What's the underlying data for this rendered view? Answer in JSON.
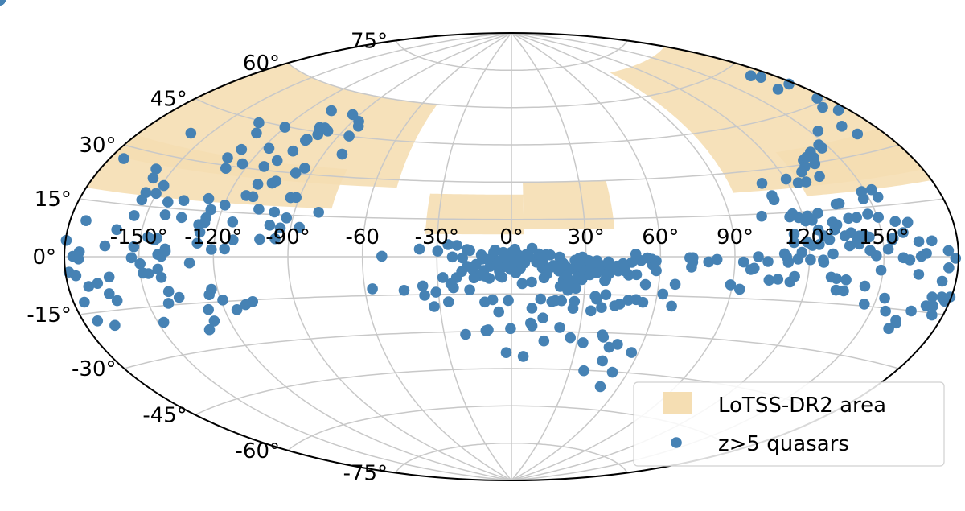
{
  "chart_data": {
    "type": "scatter",
    "projection": "aitoff",
    "xlabel": "",
    "ylabel": "",
    "xlim": [
      -180,
      180
    ],
    "ylim": [
      -90,
      90
    ],
    "grid": true,
    "legend_position": "bottom-right",
    "x_tick_labels": [
      "-150°",
      "-120°",
      "-90°",
      "-60",
      "-30°",
      "0°",
      "30°",
      "60°",
      "90°",
      "120°",
      "150°"
    ],
    "x_tick_values": [
      -150,
      -120,
      -90,
      -60,
      -30,
      0,
      30,
      60,
      90,
      120,
      150
    ],
    "y_tick_labels": [
      "-75°",
      "-60°",
      "-45°",
      "-30°",
      "-15°",
      "0°",
      "15°",
      "30°",
      "45°",
      "60°",
      "75°"
    ],
    "y_tick_values": [
      -75,
      -60,
      -45,
      -30,
      -15,
      0,
      15,
      30,
      45,
      60,
      75
    ],
    "colors": {
      "area": "#f5deb3",
      "quasars": "#4682b4"
    },
    "series": [
      {
        "name": "LoTSS-DR2 area",
        "kind": "area",
        "regions": [
          {
            "lon": [
              -180,
              -50
            ],
            "lat": [
              27,
              60
            ]
          },
          {
            "lon": [
              -180,
              -75
            ],
            "lat": [
              18,
              33
            ]
          },
          {
            "lon": [
              -35,
              5
            ],
            "lat": [
              9,
              25
            ]
          },
          {
            "lon": [
              5,
              42
            ],
            "lat": [
              11,
              30
            ]
          },
          {
            "lon": [
              95,
              180
            ],
            "lat": [
              23,
              70
            ]
          },
          {
            "lon": [
              125,
              180
            ],
            "lat": [
              20,
              35
            ]
          }
        ]
      },
      {
        "name": "z>5 quasars",
        "kind": "points",
        "lon": [
          -120.1,
          -107.7,
          -134.9,
          -103.6,
          -103.3,
          -101.8,
          -103.8,
          -100.5,
          -100.6,
          -97.5,
          -130.0,
          -128.7,
          -93.9,
          -86.8,
          -84.5,
          -84.7,
          -128.3,
          -108.7,
          -131.3,
          -112.5,
          -105.1,
          -158.5,
          -81.5,
          -117.0,
          -174.3,
          -157.2,
          -155.5,
          -154.6,
          -143.5,
          -150.2,
          -137.3,
          -127.5,
          -110.2,
          -103.2,
          -109.6,
          -154.9,
          -122.7,
          -96.8,
          -94.2,
          -104.4,
          -112.6,
          -91.4,
          -80.0,
          -86.5,
          -94.2,
          -98.7,
          -101.8,
          -95.6,
          -98.2,
          -105.0,
          -92.6,
          -93.7,
          -119.6,
          -114.1,
          -126.4,
          -127.6,
          -120.9,
          -122.5,
          -147.6,
          -174.2,
          -168.3,
          -175.7,
          -153.0,
          -148.7,
          -152.2,
          -163.9,
          -176.6,
          -179.7,
          -173.6,
          -174.0,
          -174.3,
          -178.6,
          -176.0,
          -171.8,
          -162.7,
          -167.9,
          -164.4,
          -141.0,
          -142.6,
          -139.5,
          -146.6,
          -141.7,
          -129.7,
          -142.4,
          -160.2,
          -135.4,
          -142.4,
          -154.6,
          -149.0,
          -143.3,
          -147.0,
          -125.4,
          -125.4,
          -144.1,
          -124.6,
          -115.6,
          -112.5,
          -126.8,
          -139.4,
          -149.6,
          -140.1,
          -136.6,
          -162.2,
          -141.8,
          -119.2,
          -124.0,
          -126.6,
          -126.5,
          -130.6,
          -110.5,
          -114.9,
          -107.2,
          -56.9,
          -52.2,
          -37.1,
          -29.7,
          -25.6,
          -22.0,
          -17.9,
          -12.1,
          -7.2,
          -6.6,
          -16.8,
          -19.7,
          -14.3,
          -11.7,
          -7.8,
          -15.5,
          -8.3,
          -23.8,
          -22.3,
          -17.1,
          -11.1,
          -3.1,
          -11.1,
          -9.0,
          -4.7,
          -4.9,
          -0.4,
          -4.3,
          -2.0,
          -2.6,
          -5.4,
          -0.7,
          1.2,
          0.2,
          0.7,
          2.6,
          4.7,
          3.6,
          5.3,
          7.1,
          8.3,
          11.0,
          10.3,
          10.1,
          12.5,
          12.8,
          15.6,
          16.9,
          19.4,
          20.8,
          21.6,
          21.8,
          20.8,
          25.6,
          27.0,
          28.0,
          27.9,
          26.8,
          28.5,
          25.3,
          24.1,
          26.9,
          30.9,
          30.8,
          33.4,
          33.4,
          35.9,
          36.5,
          38.3,
          38.6,
          39.5,
          39.1,
          34.5,
          31.0,
          28.6,
          29.8,
          46.1,
          50.6,
          43.1,
          45.1,
          44.3,
          41.5,
          38.9,
          31.8,
          39.5,
          28.6,
          26.0,
          22.7,
          24.2,
          26.4,
          31.8,
          34.5,
          37.9,
          40.7,
          42.4,
          58.3,
          56.6,
          50.1,
          44.5,
          14.4,
          13.2,
          12.4,
          11.9,
          13.9,
          12.5,
          14.8,
          19.2,
          19.9,
          18.0,
          21.1,
          22.4,
          18.9,
          27.0,
          31.3,
          27.3,
          6.0,
          1.4,
          -0.1,
          -3.3,
          -5.9,
          -8.6,
          -8.6,
          -17.8,
          -20.1,
          -27.8,
          -12.9,
          -4.9,
          4.4,
          8.2,
          3.3,
          0.7,
          -5.4,
          -2.8,
          -9.5,
          -5.5,
          -2.0,
          1.8,
          -3.8,
          -10.8,
          -15.2,
          -23.7,
          -24.7,
          -31.0,
          -36.2,
          -44.0,
          -35.8,
          -26.2,
          -32.4,
          -7.8,
          -1.3,
          8.6,
          12.1,
          16.8,
          23.1,
          23.8,
          34.6,
          35.3,
          38.9,
          43.2,
          45.2,
          48.5,
          37.8,
          33.6,
          26.2,
          25.9,
          20.8,
          18.3,
          13.5,
          8.3,
          -10.9,
          -20.5,
          -11.3,
          -2.5,
          5.7,
          -0.4,
          -10.3,
          -5.4,
          9.0,
          14.8,
          21.2,
          26.6,
          32.8,
          40.7,
          45.4,
          37.3,
          44.7,
          56.8,
          48.8,
          41.4,
          50.0,
          52.2,
          52.2,
          48.5,
          73.0,
          93.3,
          96.6,
          82.8,
          89.2,
          93.5,
          71.8,
          73.1,
          79.4,
          72.6,
          56.8,
          58.5,
          62.3,
          67.0,
          54.7,
          51.7,
          66.7,
          54.6,
          47.5,
          45.8,
          45.0,
          54.7,
          115.4,
          114.6,
          118.0,
          120.5,
          124.7,
          126.5,
          128.5,
          131.3,
          135.0,
          136.4,
          137.7,
          139.5,
          140.8,
          144.5,
          144.7,
          146.9,
          149.1,
          151.8,
          153.8,
          154.3,
          157.8,
          160.4,
          164.5,
          164.4,
          165.0,
          167.1,
          169.7,
          176.0,
          178.8,
          176.3,
          174.5,
          174.1,
          178.0,
          179.5,
          176.2,
          172.3,
          175.5,
          171.3,
          166.3,
          162.8,
          162.1,
          161.3,
          155.9,
          153.3,
          146.0,
          143.8,
          135.7,
          135.6,
          131.6,
          132.5,
          129.4,
          125.8,
          125.6,
          120.4,
          111.5,
          103.3,
          99.4,
          97.9,
          104.5,
          108.0,
          113.1,
          114.6,
          110.8,
          110.0,
          114.1,
          117.0,
          119.5,
          121.4,
          124.2,
          129.5,
          140.3,
          143.1,
          158.7,
          161.6,
          156.7,
          150.4,
          146.6,
          141.6,
          138.2,
          131.3,
          132.7,
          121.1,
          114.5,
          116.0,
          121.8,
          126.4,
          123.2,
          135.4,
          148.5,
          153.0,
          153.9,
          147.6,
          136.8,
          110.7,
          103.1,
          110.6,
          109.1,
          120.4,
          124.5,
          128.0,
          129.1,
          135.2,
          137.4,
          133.8,
          139.3,
          132.2,
          136.2,
          140.1,
          146.9,
          146.8,
          153.8,
          166.6,
          168.7,
          171.1,
          175.5,
          176.0,
          177.3,
          167.6,
          172.6,
          170.1,
          167.1,
          173.1,
          164.2,
          160.6,
          164.4,
          174.9,
          160.8,
          166.8,
          155.6,
          141.3,
          164.7
        ],
        "lat": [
          44.7,
          52.6,
          44.4,
          42.1,
          46.6,
          45.6,
          41.6,
          46.7,
          44.1,
          45.8,
          41.3,
          35.6,
          52.6,
          50.6,
          48.9,
          45.0,
          29.1,
          33.7,
          32.4,
          31.2,
          37.5,
          37.1,
          38.3,
          37.3,
          26.8,
          25.8,
          23.2,
          18.9,
          16.8,
          19.0,
          17.7,
          19.0,
          25.1,
          26.7,
          20.8,
          12.0,
          31.2,
          30.1,
          32.1,
          25.9,
          21.0,
          21.5,
          16.5,
          10.7,
          10.3,
          11.2,
          6.1,
          6.4,
          15.9,
          16.6,
          14.0,
          21.3,
          17.3,
          11.8,
          8.0,
          10.4,
          2.4,
          -10.8,
          -19.9,
          -17.2,
          -19.0,
          -12.0,
          -0.3,
          -4.9,
          2.9,
          3.0,
          0.1,
          4.2,
          9.6,
          1.3,
          -0.6,
          -4.0,
          -5.0,
          -8.0,
          -5.7,
          -7.3,
          -10.3,
          0.1,
          -3.8,
          2.4,
          -5.1,
          -6.4,
          -2.0,
          0.7,
          7.7,
          12.4,
          12.9,
          16.7,
          21.5,
          5.6,
          5.9,
          12.7,
          11.2,
          5.1,
          15.5,
          2.6,
          5.7,
          4.4,
          1.7,
          -2.1,
          -10.8,
          -12.8,
          -12.4,
          -14.4,
          -14.5,
          -12.5,
          -17.3,
          -21.1,
          -23.7,
          -16.5,
          -18.0,
          -15.6,
          -12.4,
          0.2,
          3.0,
          2.2,
          4.8,
          4.5,
          2.9,
          0.7,
          1.6,
          2.7,
          2.5,
          -0.5,
          -3.1,
          -0.9,
          -2.6,
          -5.3,
          -1.0,
          -0.1,
          -8.4,
          -13.3,
          -18.2,
          -4.0,
          -5.5,
          -8.7,
          -7.7,
          -3.2,
          -5.1,
          -3.6,
          -1.5,
          -1.9,
          -2.5,
          -0.6,
          -0.7,
          1.8,
          -4.1,
          0.8,
          -1.8,
          -4.7,
          -2.4,
          -0.2,
          3.4,
          1.1,
          -0.8,
          -2.2,
          -4.5,
          -3.2,
          0.7,
          -3.5,
          -0.2,
          -2.6,
          -5.5,
          -3.7,
          -3.6,
          -1.4,
          -5.7,
          -2.1,
          -1.0,
          -6.2,
          -4.5,
          -4.5,
          -5.0,
          -3.6,
          -3.7,
          -7.1,
          -2.3,
          -3.4,
          -4.5,
          -3.5,
          -8.7,
          -5.7,
          -6.7,
          -2.0,
          -1.6,
          -1.5,
          -0.2,
          -6.1,
          -5.7,
          -7.0,
          -5.6,
          -4.3,
          -4.3,
          -4.6,
          -6.6,
          -6.5,
          -5.7,
          -9.1,
          -9.3,
          -9.3,
          -10.5,
          -12.6,
          -7.2,
          -6.4,
          -9.5,
          -4.2,
          -3.7,
          -1.6,
          -1.0,
          1.0,
          -4.8,
          -6.9,
          -8.5,
          -1.5,
          0.1,
          0.8,
          -0.6,
          -5.2,
          -5.7,
          -11.9,
          -4.3,
          -9.3,
          -7.6,
          -4.1,
          -1.9,
          -1.6,
          -0.6,
          0.9,
          3.0,
          1.7,
          1.7,
          -2.5,
          -1.3,
          -3.9,
          -3.9,
          -5.9,
          -8.3,
          -7.5,
          -5.8,
          -10.8,
          -10.2,
          -4.3,
          -2.4,
          -1.7,
          -0.2,
          -1.1,
          -2.5,
          -3.7,
          -6.5,
          -8.3,
          -7.8,
          -8.5,
          -12.4,
          -10.8,
          -14.1,
          -11.6,
          -13.2,
          -15.3,
          -18.0,
          -19.8,
          -17.3,
          -17.6,
          -20.7,
          -17.0,
          -18.0,
          -13.4,
          -12.4,
          -15.7,
          -16.8,
          -15.0,
          -19.3,
          -18.6,
          -17.0,
          -20.1,
          -21.5,
          -17.8,
          -20.6,
          -17.6,
          -17.6,
          -24.6,
          -26.7,
          -29.8,
          -31.1,
          -29.7,
          -38.6,
          -40.1,
          -28.9,
          -29.4,
          -22.2,
          -27.8,
          -33.8,
          -28.3,
          -32.3,
          -34.2,
          -30.8,
          -35.6,
          -45.2,
          -41.0,
          -37.2,
          -34.3,
          -31.7,
          -51.0,
          -45.2,
          -1.5,
          -2.2,
          -2.0,
          -11.7,
          -4.6,
          -1.0,
          -10.2,
          -1.9,
          -0.4,
          -0.4,
          -1.9,
          -3.9,
          -3.0,
          -5.4,
          -14.3,
          -18.8,
          -17.7,
          -16.7,
          -10.5,
          -10.8,
          -7.2,
          -5.2,
          -2.7,
          -0.5,
          -0.8,
          7.7,
          13.1,
          11.9,
          8.8,
          6.8,
          5.5,
          8.6,
          6.6,
          3.4,
          7.5,
          4.8,
          6.4,
          1.9,
          6.0,
          0.3,
          -4.0,
          2.2,
          4.9,
          5.4,
          -0.3,
          -0.9,
          -4.9,
          4.2,
          0.1,
          0.9,
          4.3,
          1.6,
          -0.4,
          -2.9,
          -6.5,
          -13.1,
          -11.6,
          -10.4,
          -10.6,
          -10.8,
          -15.5,
          -13.3,
          -15.1,
          -18.8,
          -18.1,
          -20.6,
          -15.9,
          -12.2,
          -14.4,
          -9.0,
          -10.8,
          -7.3,
          -7.0,
          -10.7,
          -6.6,
          -1.8,
          -1.1,
          -1.0,
          -1.9,
          -1.7,
          0.0,
          -4.1,
          -8.2,
          -7.8,
          -8.6,
          -6.7,
          0.0,
          1.0,
          4.8,
          1.5,
          4.8,
          3.7,
          4.0,
          0.9,
          3.9,
          6.5,
          6.9,
          9.7,
          10.2,
          11.7,
          12.9,
          12.1,
          12.0,
          11.1,
          10.2,
          12.8,
          13.5,
          14.5,
          13.5,
          14.2,
          12.0,
          16.7,
          19.7,
          19.9,
          17.6,
          17.5,
          16.8,
          19.6,
          14.2,
          21.1,
          25.5,
          26.1,
          24.5,
          24.5,
          27.8,
          25.7,
          29.7,
          31.3,
          31.5,
          29.3,
          32.0,
          33.3,
          34.9,
          33.8,
          38.6,
          38.1,
          35.2,
          43.7,
          41.8,
          46.0,
          51.2,
          51.3,
          55.1,
          56.4
        ]
      }
    ]
  }
}
